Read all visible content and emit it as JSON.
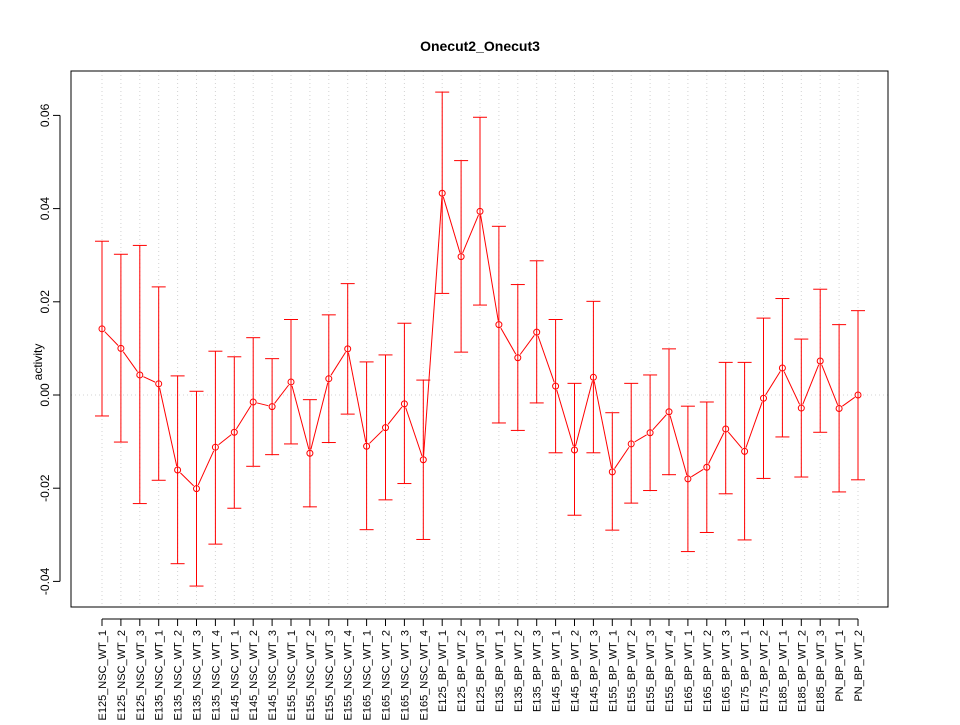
{
  "chart_data": {
    "type": "line",
    "title": "Onecut2_Onecut3",
    "xlabel": "",
    "ylabel": "activity",
    "ylim": [
      -0.045,
      0.069
    ],
    "yticks": [
      -0.04,
      -0.02,
      0.0,
      0.02,
      0.04,
      0.06
    ],
    "ytick_labels": [
      "-0.04",
      "-0.02",
      "0.00",
      "0.02",
      "0.04",
      "0.06"
    ],
    "grid": true,
    "reference_line": 0,
    "categories": [
      "E125_NSC_WT_1",
      "E125_NSC_WT_2",
      "E125_NSC_WT_3",
      "E135_NSC_WT_1",
      "E135_NSC_WT_2",
      "E135_NSC_WT_3",
      "E135_NSC_WT_4",
      "E145_NSC_WT_1",
      "E145_NSC_WT_2",
      "E145_NSC_WT_3",
      "E155_NSC_WT_1",
      "E155_NSC_WT_2",
      "E155_NSC_WT_3",
      "E155_NSC_WT_4",
      "E165_NSC_WT_1",
      "E165_NSC_WT_2",
      "E165_NSC_WT_3",
      "E165_NSC_WT_4",
      "E125_BP_WT_1",
      "E125_BP_WT_2",
      "E125_BP_WT_3",
      "E135_BP_WT_1",
      "E135_BP_WT_2",
      "E135_BP_WT_3",
      "E145_BP_WT_1",
      "E145_BP_WT_2",
      "E145_BP_WT_3",
      "E155_BP_WT_1",
      "E155_BP_WT_2",
      "E155_BP_WT_3",
      "E155_BP_WT_4",
      "E165_BP_WT_1",
      "E165_BP_WT_2",
      "E165_BP_WT_3",
      "E175_BP_WT_1",
      "E175_BP_WT_2",
      "E185_BP_WT_1",
      "E185_BP_WT_2",
      "E185_BP_WT_3",
      "PN_BP_WT_1",
      "PN_BP_WT_2"
    ],
    "series": [
      {
        "color": "#ff0000",
        "values": [
          0.0142,
          0.01,
          0.0043,
          0.0024,
          -0.0161,
          -0.0201,
          -0.0112,
          -0.008,
          -0.0015,
          -0.0025,
          0.0028,
          -0.0125,
          0.0035,
          0.0099,
          -0.011,
          -0.007,
          -0.0019,
          -0.0139,
          0.0433,
          0.0297,
          0.0394,
          0.0151,
          0.008,
          0.0135,
          0.0019,
          -0.0118,
          0.0038,
          -0.0165,
          -0.0105,
          -0.0081,
          -0.0036,
          -0.018,
          -0.0155,
          -0.0073,
          -0.0121,
          -0.0007,
          0.0058,
          -0.0028,
          0.0073,
          -0.0029,
          0.0
        ],
        "lower": [
          -0.0045,
          -0.0101,
          -0.0233,
          -0.0183,
          -0.0362,
          -0.041,
          -0.032,
          -0.0243,
          -0.0153,
          -0.0128,
          -0.0105,
          -0.024,
          -0.0102,
          -0.0041,
          -0.0289,
          -0.0225,
          -0.019,
          -0.031,
          0.0218,
          0.0092,
          0.0193,
          -0.006,
          -0.0076,
          -0.0017,
          -0.0124,
          -0.0258,
          -0.0124,
          -0.029,
          -0.0232,
          -0.0205,
          -0.0171,
          -0.0336,
          -0.0295,
          -0.0212,
          -0.0311,
          -0.0179,
          -0.009,
          -0.0176,
          -0.008,
          -0.0208,
          -0.0182
        ],
        "upper": [
          0.033,
          0.0302,
          0.0321,
          0.0232,
          0.0041,
          0.0008,
          0.0094,
          0.0082,
          0.0123,
          0.0078,
          0.0162,
          -0.001,
          0.0172,
          0.0239,
          0.0071,
          0.0086,
          0.0154,
          0.0032,
          0.065,
          0.0503,
          0.0596,
          0.0362,
          0.0237,
          0.0288,
          0.0162,
          0.0025,
          0.0201,
          -0.0038,
          0.0025,
          0.0043,
          0.0099,
          -0.0024,
          -0.0015,
          0.007,
          0.007,
          0.0165,
          0.0207,
          0.012,
          0.0227,
          0.0151,
          0.0181
        ]
      }
    ]
  }
}
